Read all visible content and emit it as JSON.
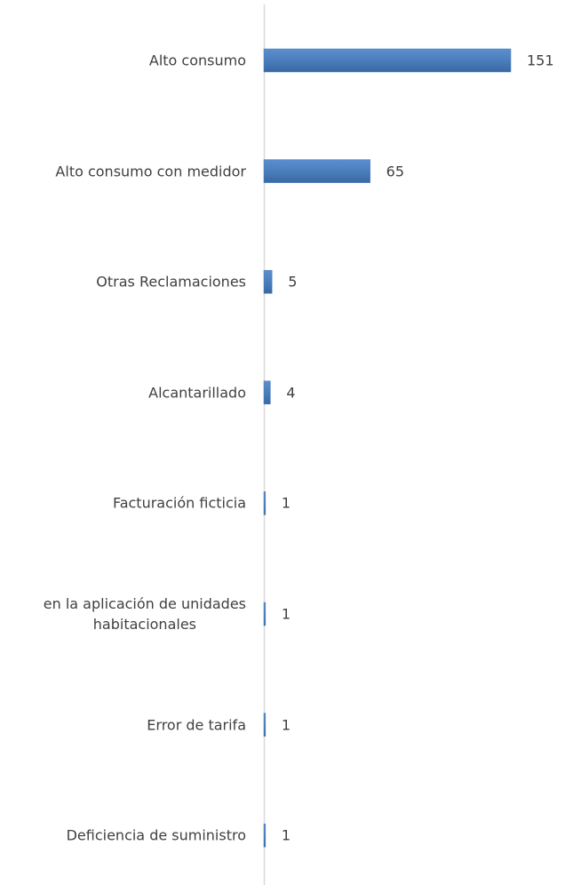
{
  "chart_data": {
    "type": "barh",
    "categories": [
      "Alto consumo",
      "Alto consumo con medidor",
      "Otras Reclamaciones",
      "Alcantarillado",
      "Facturación ficticia",
      "en la aplicación de unidades\nhabitacionales",
      "Error de tarifa",
      "Deficiencia de suministro"
    ],
    "values": [
      151,
      65,
      5,
      4,
      1,
      1,
      1,
      1
    ],
    "color": "#4a7ebb"
  }
}
